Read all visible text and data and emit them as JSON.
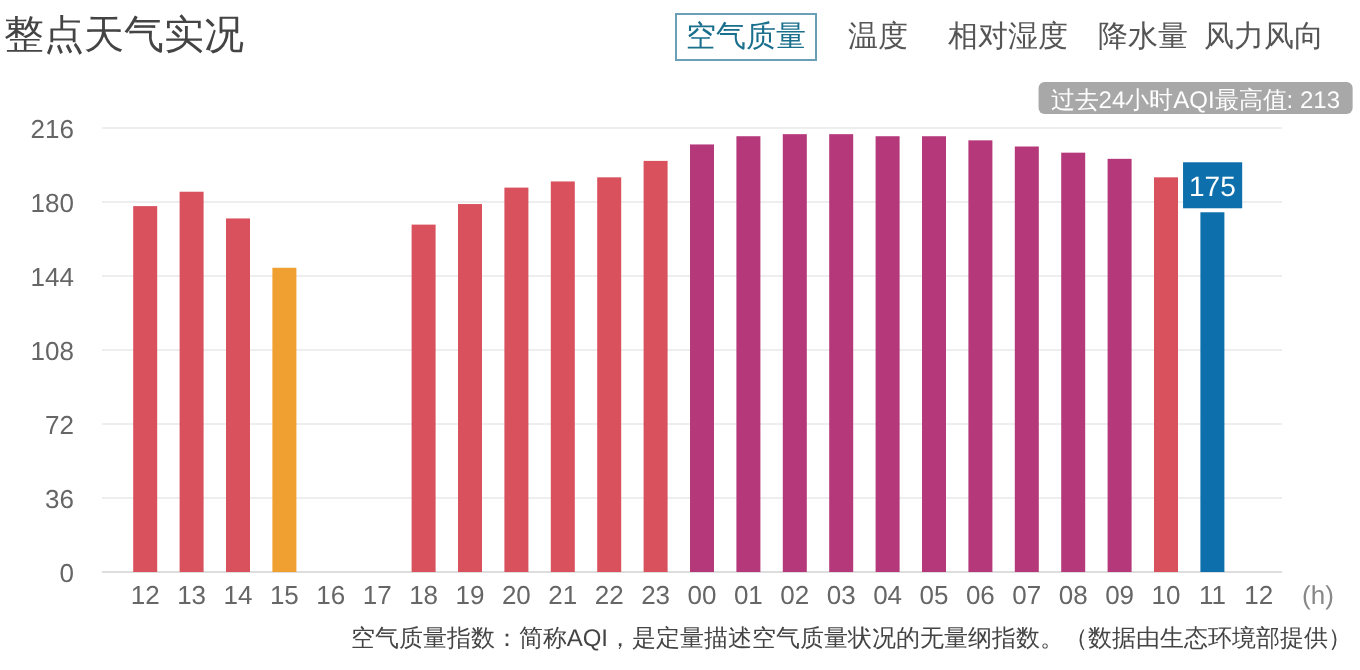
{
  "chart_data": {
    "type": "bar",
    "title": "整点天气实况",
    "xlabel": "(h)",
    "categories": [
      "12",
      "13",
      "14",
      "15",
      "16",
      "17",
      "18",
      "19",
      "20",
      "21",
      "22",
      "23",
      "00",
      "01",
      "02",
      "03",
      "04",
      "05",
      "06",
      "07",
      "08",
      "09",
      "10",
      "11",
      "12"
    ],
    "values": [
      178,
      185,
      172,
      148,
      null,
      null,
      169,
      179,
      187,
      190,
      192,
      200,
      208,
      212,
      213,
      213,
      212,
      212,
      210,
      207,
      204,
      201,
      192,
      175,
      null
    ],
    "colors": [
      "#d9515d",
      "#d9515d",
      "#d9515d",
      "#f0a030",
      null,
      null,
      "#d9515d",
      "#d9515d",
      "#d9515d",
      "#d9515d",
      "#d9515d",
      "#d9515d",
      "#b5397a",
      "#b5397a",
      "#b5397a",
      "#b5397a",
      "#b5397a",
      "#b5397a",
      "#b5397a",
      "#b5397a",
      "#b5397a",
      "#b5397a",
      "#d9515d",
      "#0e6fad",
      null
    ],
    "value_labels": [
      null,
      null,
      null,
      null,
      null,
      null,
      null,
      null,
      null,
      null,
      null,
      null,
      null,
      null,
      null,
      null,
      null,
      null,
      null,
      null,
      null,
      null,
      null,
      "175",
      null
    ],
    "ylim": [
      0,
      216
    ],
    "yticks": [
      0,
      36,
      72,
      108,
      144,
      180,
      216
    ],
    "grid": "y",
    "annotations": [
      "空气质量",
      "温度",
      "相对湿度",
      "降水量",
      "风力风向",
      "过去24小时AQI最高值: 213",
      "空气质量指数：简称AQI，是定量描述空气质量状况的无量纲指数。（数据由生态环境部提供）"
    ]
  }
}
